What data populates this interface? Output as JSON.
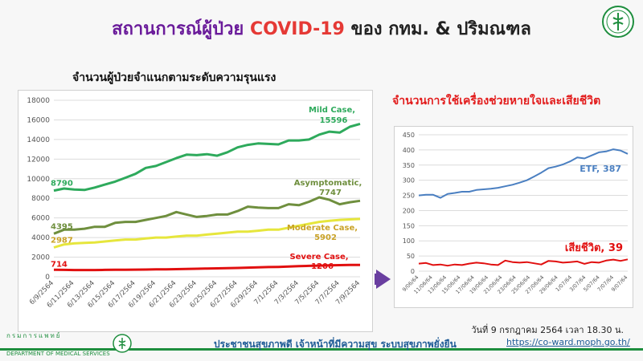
{
  "title": {
    "part1": "สถานการณ์ผู้ป่วย",
    "part2": "COVID-19",
    "part3": "ของ กทม. & ปริมณฑล"
  },
  "left_heading": "จำนวนผู้ป่วยจำแนกตามระดับความรุนแรง",
  "right_heading": "จำนวนการใช้เครื่องช่วยหายใจและเสียชีวิต",
  "date_note": "วันที่ 9 กรกฎาคม 2564 เวลา 18.30 น.",
  "footer": {
    "dept_th": "กรมการแพทย์",
    "dept_en": "DEPARTMENT OF MEDICAL SERVICES",
    "slogan": "ประชาชนสุขภาพดี  เจ้าหน้าที่มีความสุข  ระบบสุขภาพยั่งยืน",
    "url": "https://co-ward.moph.go.th/"
  },
  "chart_data": [
    {
      "type": "line",
      "title": "จำนวนผู้ป่วยจำแนกตามระดับความรุนแรง",
      "ylim": [
        0,
        18000
      ],
      "yticks": [
        0,
        2000,
        4000,
        6000,
        8000,
        10000,
        12000,
        14000,
        16000,
        18000
      ],
      "x_labels": [
        "6/9/2564",
        "6/11/2564",
        "6/13/2564",
        "6/15/2564",
        "6/17/2564",
        "6/19/2564",
        "6/21/2564",
        "6/23/2564",
        "6/25/2564",
        "6/27/2564",
        "6/29/2564",
        "7/1/2564",
        "7/3/2564",
        "7/5/2564",
        "7/7/2564",
        "7/9/2564"
      ],
      "grid": true,
      "series": [
        {
          "name": "Mild Case,",
          "value_label": "15596",
          "start_label": "8790",
          "color": "#2eaa5c",
          "label_color": "#2eaa5c",
          "values": [
            8790,
            9000,
            8900,
            8850,
            9100,
            9400,
            9700,
            10100,
            10500,
            11100,
            11300,
            11700,
            12100,
            12450,
            12400,
            12500,
            12350,
            12700,
            13200,
            13450,
            13600,
            13550,
            13500,
            13900,
            13900,
            14000,
            14500,
            14800,
            14700,
            15300,
            15596
          ]
        },
        {
          "name": "Asymptomatic,",
          "value_label": "7747",
          "start_label": "4395",
          "color": "#6f8f3e",
          "label_color": "#6f8f3e",
          "values": [
            4395,
            4800,
            4800,
            4900,
            5100,
            5100,
            5500,
            5600,
            5600,
            5800,
            6000,
            6200,
            6600,
            6350,
            6100,
            6200,
            6350,
            6350,
            6700,
            7150,
            7050,
            7000,
            7000,
            7400,
            7300,
            7650,
            8100,
            7850,
            7400,
            7600,
            7747
          ]
        },
        {
          "name": "Moderate Case,",
          "value_label": "5902",
          "start_label": "2987",
          "color": "#e6e63c",
          "label_color": "#c9a227",
          "values": [
            2987,
            3300,
            3400,
            3450,
            3500,
            3600,
            3700,
            3800,
            3800,
            3900,
            4000,
            4000,
            4100,
            4200,
            4200,
            4300,
            4400,
            4500,
            4600,
            4600,
            4700,
            4800,
            4800,
            5000,
            5200,
            5400,
            5600,
            5700,
            5800,
            5850,
            5902
          ]
        },
        {
          "name": "Severe Case,",
          "value_label": "1206",
          "start_label": "714",
          "color": "#e10f0f",
          "label_color": "#e10f0f",
          "values": [
            714,
            700,
            690,
            690,
            690,
            700,
            710,
            720,
            730,
            740,
            750,
            760,
            780,
            800,
            820,
            840,
            860,
            880,
            900,
            930,
            960,
            990,
            1010,
            1040,
            1080,
            1110,
            1140,
            1170,
            1190,
            1200,
            1206
          ]
        }
      ]
    },
    {
      "type": "line",
      "title": "จำนวนการใช้เครื่องช่วยหายใจและเสียชีวิต",
      "ylim": [
        0,
        450
      ],
      "yticks": [
        0,
        50,
        100,
        150,
        200,
        250,
        300,
        350,
        400,
        450
      ],
      "x_labels": [
        "9/06/64",
        "11/06/64",
        "13/06/64",
        "15/06/64",
        "17/06/64",
        "19/06/64",
        "21/06/64",
        "23/06/64",
        "25/06/64",
        "27/06/64",
        "29/06/64",
        "1/07/64",
        "3/07/64",
        "5/07/64",
        "7/07/64",
        "9/07/64"
      ],
      "grid": true,
      "series": [
        {
          "name": "ETF,",
          "value_label": "387",
          "color": "#4a7fc1",
          "label_color": "#4a7fc1",
          "values": [
            250,
            252,
            252,
            242,
            255,
            258,
            262,
            262,
            268,
            270,
            272,
            275,
            280,
            285,
            292,
            300,
            312,
            325,
            340,
            345,
            352,
            362,
            375,
            372,
            382,
            392,
            395,
            402,
            398,
            387
          ]
        },
        {
          "name": "เสียชีวิต,",
          "value_label": "39",
          "color": "#e10f0f",
          "label_color": "#e10f0f",
          "values": [
            25,
            27,
            20,
            22,
            18,
            22,
            20,
            25,
            28,
            26,
            22,
            20,
            35,
            30,
            28,
            30,
            26,
            22,
            34,
            32,
            28,
            30,
            32,
            24,
            30,
            28,
            35,
            38,
            34,
            39
          ]
        }
      ]
    }
  ]
}
